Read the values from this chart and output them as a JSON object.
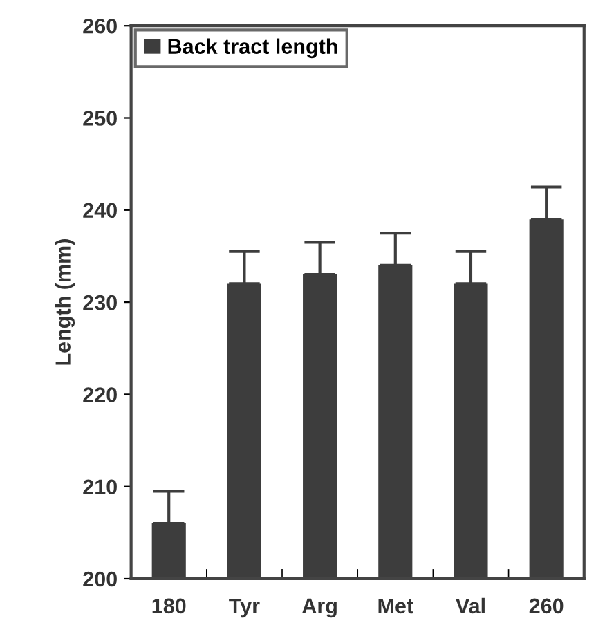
{
  "chart_data": {
    "type": "bar",
    "ylabel": "Length (mm)",
    "categories": [
      "180",
      "Tyr",
      "Arg",
      "Met",
      "Val",
      "260"
    ],
    "series": [
      {
        "name": "Back tract length",
        "color": "#3d3d3d",
        "values": [
          206,
          232,
          233,
          234,
          232,
          239
        ],
        "errors": [
          3.5,
          3.5,
          3.5,
          3.5,
          3.5,
          3.5
        ]
      }
    ],
    "ylim": [
      200,
      260
    ],
    "yticks": [
      200,
      210,
      220,
      230,
      240,
      250,
      260
    ],
    "grid": false,
    "legend": "top left"
  }
}
